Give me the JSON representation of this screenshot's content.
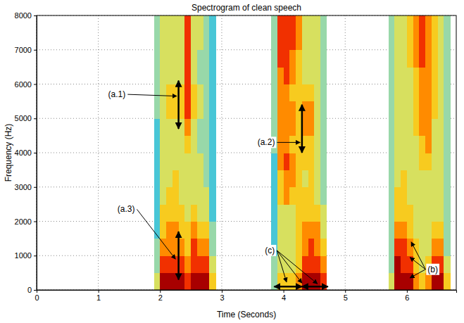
{
  "chart_data": {
    "type": "heatmap",
    "title": "Spectrogram of clean speech",
    "x_label": "Time (Seconds)",
    "y_label": "Frequency (Hz)",
    "xlim": [
      0,
      6.8
    ],
    "ylim": [
      0,
      8000
    ],
    "xticks": [
      0,
      1,
      2,
      3,
      4,
      5,
      6
    ],
    "yticks": [
      0,
      1000,
      2000,
      3000,
      4000,
      5000,
      6000,
      7000,
      8000
    ],
    "grid": true,
    "time_bins": [
      [
        1.9,
        2.0
      ],
      [
        2.0,
        2.1
      ],
      [
        2.1,
        2.2
      ],
      [
        2.2,
        2.3
      ],
      [
        2.3,
        2.4
      ],
      [
        2.4,
        2.5
      ],
      [
        2.5,
        2.6
      ],
      [
        2.6,
        2.7
      ],
      [
        2.7,
        2.8
      ],
      [
        2.8,
        2.9
      ],
      [
        3.8,
        3.9
      ],
      [
        3.9,
        4.0
      ],
      [
        4.0,
        4.1
      ],
      [
        4.1,
        4.2
      ],
      [
        4.2,
        4.3
      ],
      [
        4.3,
        4.4
      ],
      [
        4.4,
        4.5
      ],
      [
        4.5,
        4.6
      ],
      [
        4.6,
        4.7
      ],
      [
        5.7,
        5.8
      ],
      [
        5.8,
        5.9
      ],
      [
        5.9,
        6.0
      ],
      [
        6.0,
        6.1
      ],
      [
        6.1,
        6.2
      ],
      [
        6.2,
        6.3
      ],
      [
        6.3,
        6.4
      ],
      [
        6.4,
        6.5
      ],
      [
        6.5,
        6.6
      ],
      [
        6.6,
        6.7
      ]
    ],
    "freq_bins": [
      0,
      500,
      1000,
      1500,
      2000,
      2500,
      3000,
      3500,
      4000,
      4500,
      5000,
      5500,
      6000,
      6500,
      7000,
      7500,
      8000
    ],
    "values": [
      [
        5,
        4,
        4,
        3,
        3,
        3,
        3,
        3,
        3,
        3,
        4,
        4,
        4,
        4,
        4,
        4
      ],
      [
        9,
        8,
        7,
        6,
        6,
        5,
        5,
        5,
        5,
        5,
        5,
        5,
        5,
        5,
        5,
        5
      ],
      [
        9,
        8,
        7,
        7,
        6,
        6,
        5,
        5,
        5,
        5,
        6,
        6,
        5,
        5,
        5,
        5
      ],
      [
        9,
        8,
        7,
        7,
        6,
        6,
        6,
        5,
        5,
        5,
        6,
        6,
        5,
        5,
        5,
        5
      ],
      [
        9,
        8,
        7,
        6,
        6,
        5,
        5,
        5,
        5,
        5,
        6,
        6,
        5,
        5,
        5,
        5
      ],
      [
        8,
        7,
        6,
        6,
        5,
        5,
        5,
        5,
        6,
        7,
        8,
        8,
        8,
        8,
        8,
        8
      ],
      [
        9,
        8,
        8,
        7,
        6,
        5,
        5,
        5,
        5,
        5,
        6,
        6,
        5,
        5,
        5,
        5
      ],
      [
        9,
        8,
        7,
        6,
        5,
        5,
        5,
        5,
        4,
        4,
        5,
        5,
        4,
        4,
        5,
        5
      ],
      [
        9,
        8,
        7,
        6,
        5,
        5,
        4,
        4,
        4,
        4,
        4,
        4,
        4,
        4,
        4,
        4
      ],
      [
        6,
        5,
        4,
        4,
        3,
        3,
        3,
        3,
        3,
        3,
        3,
        3,
        3,
        3,
        3,
        3
      ],
      [
        4,
        4,
        3,
        3,
        3,
        3,
        3,
        3,
        4,
        4,
        4,
        4,
        4,
        4,
        4,
        4
      ],
      [
        6,
        5,
        5,
        5,
        5,
        6,
        6,
        7,
        7,
        7,
        7,
        7,
        7,
        8,
        8,
        8
      ],
      [
        6,
        5,
        5,
        5,
        5,
        7,
        7,
        8,
        7,
        7,
        7,
        7,
        8,
        8,
        8,
        8
      ],
      [
        6,
        5,
        5,
        5,
        5,
        6,
        7,
        7,
        6,
        7,
        7,
        6,
        7,
        7,
        8,
        8
      ],
      [
        7,
        6,
        6,
        6,
        6,
        6,
        6,
        6,
        6,
        6,
        6,
        6,
        6,
        6,
        7,
        7
      ],
      [
        9,
        8,
        7,
        7,
        6,
        6,
        5,
        6,
        6,
        7,
        7,
        6,
        5,
        5,
        5,
        5
      ],
      [
        9,
        8,
        8,
        7,
        6,
        6,
        6,
        6,
        6,
        7,
        7,
        6,
        5,
        5,
        5,
        5
      ],
      [
        9,
        8,
        7,
        7,
        6,
        5,
        5,
        5,
        5,
        5,
        5,
        5,
        5,
        5,
        5,
        5
      ],
      [
        8,
        7,
        6,
        5,
        5,
        4,
        4,
        4,
        4,
        4,
        4,
        4,
        4,
        4,
        4,
        4
      ],
      [
        5,
        4,
        4,
        4,
        4,
        4,
        4,
        4,
        4,
        4,
        4,
        4,
        4,
        4,
        4,
        4
      ],
      [
        9,
        9,
        8,
        7,
        6,
        6,
        5,
        5,
        5,
        5,
        5,
        5,
        5,
        5,
        5,
        5
      ],
      [
        9,
        8,
        8,
        7,
        6,
        6,
        6,
        5,
        5,
        5,
        5,
        5,
        5,
        5,
        5,
        5
      ],
      [
        9,
        8,
        7,
        6,
        6,
        5,
        5,
        5,
        5,
        5,
        5,
        5,
        5,
        6,
        6,
        6
      ],
      [
        7,
        6,
        6,
        5,
        5,
        5,
        5,
        5,
        5,
        6,
        6,
        6,
        6,
        7,
        7,
        7
      ],
      [
        6,
        5,
        5,
        5,
        5,
        5,
        5,
        6,
        6,
        7,
        7,
        7,
        7,
        8,
        8,
        8
      ],
      [
        7,
        6,
        5,
        5,
        5,
        5,
        5,
        6,
        7,
        7,
        7,
        7,
        7,
        7,
        7,
        7
      ],
      [
        9,
        8,
        7,
        6,
        5,
        5,
        5,
        5,
        5,
        5,
        6,
        6,
        6,
        6,
        6,
        6
      ],
      [
        9,
        8,
        7,
        6,
        5,
        5,
        5,
        5,
        5,
        5,
        5,
        5,
        5,
        5,
        5,
        5
      ],
      [
        6,
        5,
        4,
        4,
        4,
        4,
        4,
        4,
        4,
        4,
        4,
        4,
        4,
        4,
        4,
        4
      ]
    ],
    "annotations": [
      {
        "text": "(a.1)",
        "x": 1.3,
        "y": 5700,
        "pointers": [
          [
            2.27,
            5650
          ]
        ],
        "spans": [
          {
            "x": [
              2.3,
              2.3
            ],
            "y": [
              4700,
              6100
            ]
          }
        ]
      },
      {
        "text": "(a.2)",
        "x": 3.72,
        "y": 4300,
        "pointers": [
          [
            4.27,
            4300
          ]
        ],
        "spans": [
          {
            "x": [
              4.3,
              4.3
            ],
            "y": [
              4000,
              5400
            ]
          }
        ]
      },
      {
        "text": "(a.3)",
        "x": 1.45,
        "y": 2350,
        "pointers": [
          [
            2.25,
            900
          ]
        ],
        "spans": [
          {
            "x": [
              2.3,
              2.3
            ],
            "y": [
              300,
              1700
            ]
          }
        ]
      },
      {
        "text": "(b)",
        "x": 6.42,
        "y": 600,
        "pointers": [
          [
            6.07,
            1400
          ],
          [
            6.05,
            950
          ],
          [
            6.05,
            350
          ]
        ],
        "spans": []
      },
      {
        "text": "(c)",
        "x": 3.78,
        "y": 1150,
        "pointers": [
          [
            4.05,
            230
          ],
          [
            4.3,
            200
          ],
          [
            4.55,
            180
          ]
        ],
        "spans": [
          {
            "x": [
              3.85,
              4.3
            ],
            "y": [
              100,
              100
            ]
          },
          {
            "x": [
              4.3,
              4.72
            ],
            "y": [
              100,
              100
            ]
          }
        ]
      }
    ]
  }
}
